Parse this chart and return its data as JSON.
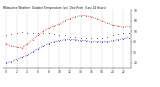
{
  "title": "Milwaukee Weather  Outdoor Temperature (vs)  Dew Point  (Last 24 Hours)",
  "temp": [
    38,
    36,
    35,
    34,
    38,
    42,
    46,
    50,
    53,
    55,
    57,
    60,
    62,
    64,
    65,
    65,
    64,
    62,
    60,
    58,
    56,
    55,
    54,
    55
  ],
  "dew": [
    20,
    21,
    23,
    25,
    27,
    30,
    33,
    36,
    38,
    40,
    41,
    42,
    42,
    42,
    41,
    41,
    40,
    40,
    40,
    40,
    41,
    42,
    43,
    44
  ],
  "hum": [
    46,
    47,
    48,
    49,
    48,
    48,
    48,
    48,
    48,
    47,
    46,
    46,
    45,
    45,
    44,
    44,
    44,
    44,
    44,
    45,
    46,
    47,
    48,
    48
  ],
  "ylim": [
    15,
    70
  ],
  "ytick_values": [
    20,
    30,
    40,
    50,
    60,
    70
  ],
  "ytick_labels": [
    "20",
    "30",
    "40",
    "50",
    "60",
    "70"
  ],
  "n_points": 24,
  "temp_color": "#cc0000",
  "dew_color": "#0000bb",
  "hum_color": "#111111",
  "bg_color": "#ffffff",
  "grid_color": "#888888",
  "title_color": "#111111",
  "title_fontsize": 2.0,
  "tick_fontsize": 2.2,
  "line_width": 0.5,
  "marker_size": 1.0
}
